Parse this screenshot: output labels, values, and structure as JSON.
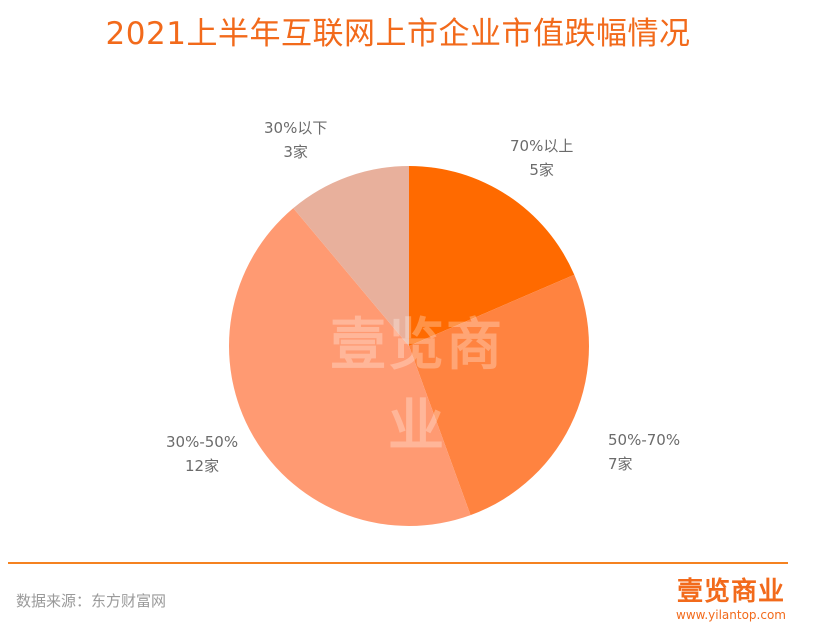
{
  "title": "2021上半年互联网上市企业市值跌幅情况",
  "chart_data": {
    "type": "pie",
    "title": "2021上半年互联网上市企业市值跌幅情况",
    "slices": [
      {
        "label": "70%以上",
        "value": 5,
        "value_label": "5家",
        "color": "#ff6a00"
      },
      {
        "label": "50%-70%",
        "value": 7,
        "value_label": "7家",
        "color": "#ff8340"
      },
      {
        "label": "30%-50%",
        "value": 12,
        "value_label": "12家",
        "color": "#ff9a72"
      },
      {
        "label": "30%以下",
        "value": 3,
        "value_label": "3家",
        "color": "#e8b09c"
      }
    ]
  },
  "source": "数据来源：东方财富网",
  "logo": {
    "name": "壹览商业",
    "url": "www.yilantop.com"
  },
  "watermark": "壹览商业"
}
